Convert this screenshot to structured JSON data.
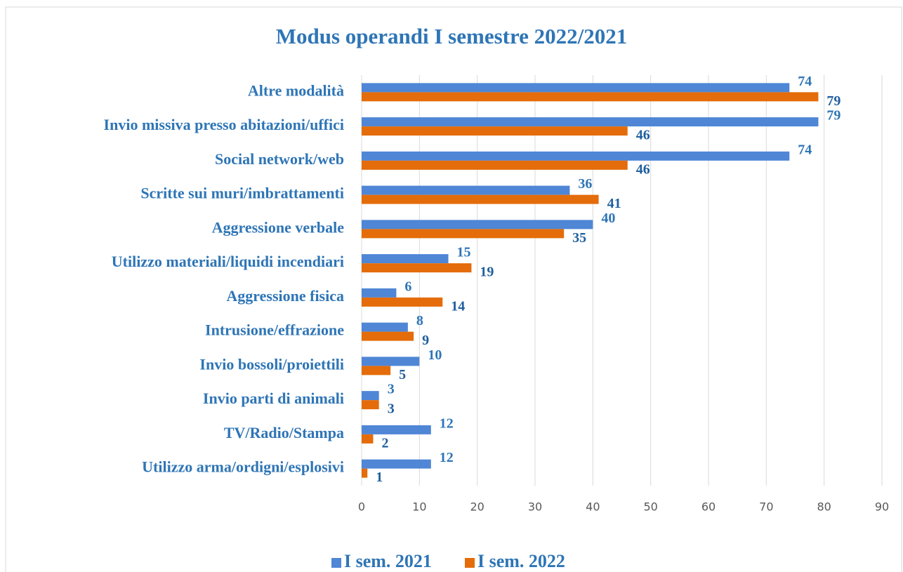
{
  "chart_data": {
    "type": "bar",
    "orientation": "horizontal",
    "title": "Modus operandi I semestre 2022/2021",
    "categories": [
      "Altre modalità",
      "Invio missiva presso abitazioni/uffici",
      "Social network/web",
      "Scritte sui muri/imbrattamenti",
      "Aggressione verbale",
      "Utilizzo materiali/liquidi incendiari",
      "Aggressione fisica",
      "Intrusione/effrazione",
      "Invio bossoli/proiettili",
      "Invio parti di animali",
      "TV/Radio/Stampa",
      "Utilizzo arma/ordigni/esplosivi"
    ],
    "series": [
      {
        "name": "I sem. 2021",
        "color": "#4f86d6",
        "label_color": "#2e75b6",
        "values": [
          74,
          79,
          74,
          36,
          40,
          15,
          6,
          8,
          10,
          3,
          12,
          12
        ]
      },
      {
        "name": "I sem. 2022",
        "color": "#e46c0a",
        "label_color": "#1f5f9e",
        "values": [
          79,
          46,
          46,
          41,
          35,
          19,
          14,
          9,
          5,
          3,
          2,
          1
        ]
      }
    ],
    "xlim": [
      0,
      90
    ],
    "xticks": [
      0,
      10,
      20,
      30,
      40,
      50,
      60,
      70,
      80,
      90
    ],
    "grid": true,
    "legend": "bottom"
  }
}
